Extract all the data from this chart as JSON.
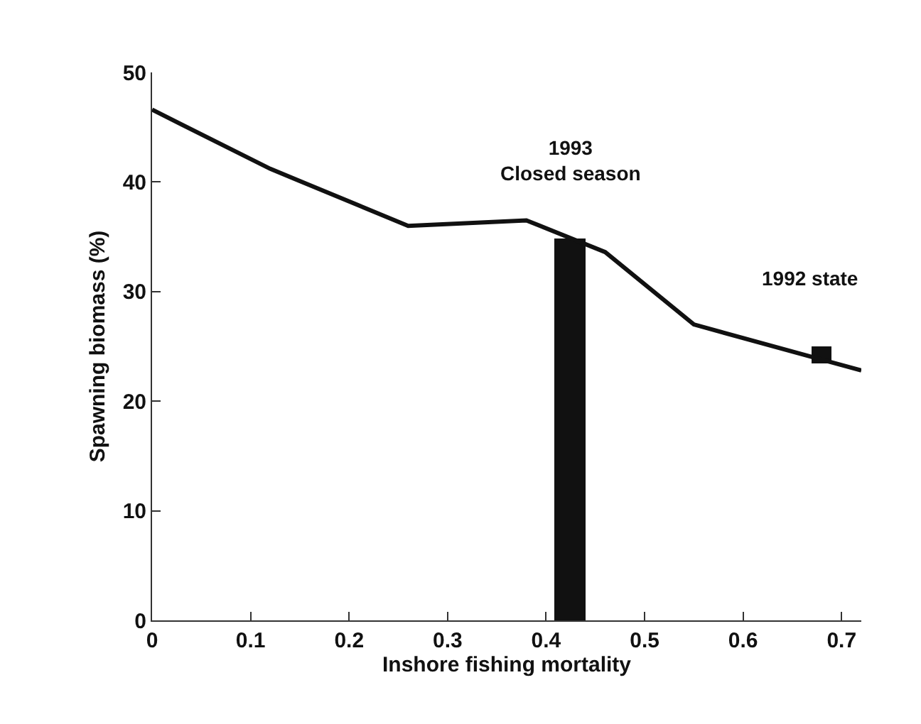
{
  "chart_data": {
    "type": "line",
    "xlabel": "Inshore fishing mortality",
    "ylabel": "Spawning biomass (%)",
    "xlim": [
      0,
      0.72
    ],
    "xticks": [
      0,
      0.1,
      0.2,
      0.3,
      0.4,
      0.5,
      0.6,
      0.7
    ],
    "ylim": [
      0,
      50
    ],
    "yticks": [
      0,
      10,
      20,
      30,
      40,
      50
    ],
    "marker": "none",
    "line_style": "solid",
    "series": [
      {
        "color": "#111111",
        "x": [
          0,
          0.12,
          0.26,
          0.38,
          0.46,
          0.55,
          0.72
        ],
        "values": [
          46.6,
          41.2,
          36,
          36.5,
          33.6,
          27,
          22.8
        ]
      },
      {
        "type": "bar",
        "color": "#111111",
        "x": [
          0.424,
          0.68
        ],
        "base": [
          0,
          23.5
        ],
        "values": [
          34.8,
          1.5
        ]
      }
    ],
    "annotations": [
      "1993\nClosed season",
      {
        "text": "1992 state",
        "x": 0.68,
        "y": 25
      }
    ]
  }
}
